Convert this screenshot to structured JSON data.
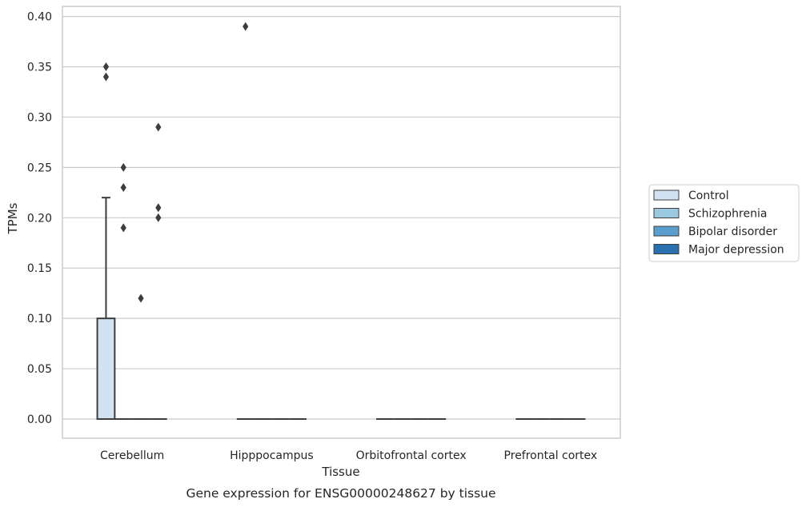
{
  "chart_data": {
    "type": "box",
    "title": "Gene expression for ENSG00000248627 by tissue",
    "xlabel": "Tissue",
    "ylabel": "TPMs",
    "ylim": [
      -0.019,
      0.41
    ],
    "yticks": [
      0.0,
      0.05,
      0.1,
      0.15,
      0.2,
      0.25,
      0.3,
      0.35,
      0.4
    ],
    "ytick_labels": [
      "0.00",
      "0.05",
      "0.10",
      "0.15",
      "0.20",
      "0.25",
      "0.30",
      "0.35",
      "0.40"
    ],
    "grid": "horizontal",
    "legend_position": "right-center",
    "categories": [
      "Cerebellum",
      "Hipppocampus",
      "Orbitofrontal cortex",
      "Prefrontal cortex"
    ],
    "series": [
      {
        "name": "Control",
        "color": "#d1e2f2",
        "boxes": [
          {
            "q1": 0.0,
            "median": 0.0,
            "q3": 0.1,
            "whisker_low": 0.0,
            "whisker_high": 0.22,
            "outliers": [
              0.35,
              0.34
            ]
          },
          {
            "q1": 0.0,
            "median": 0.0,
            "q3": 0.0,
            "whisker_low": 0.0,
            "whisker_high": 0.0,
            "outliers": [
              0.39
            ]
          },
          {
            "q1": 0.0,
            "median": 0.0,
            "q3": 0.0,
            "whisker_low": 0.0,
            "whisker_high": 0.0,
            "outliers": []
          },
          {
            "q1": 0.0,
            "median": 0.0,
            "q3": 0.0,
            "whisker_low": 0.0,
            "whisker_high": 0.0,
            "outliers": []
          }
        ]
      },
      {
        "name": "Schizophrenia",
        "color": "#9ac8e0",
        "boxes": [
          {
            "q1": 0.0,
            "median": 0.0,
            "q3": 0.0,
            "whisker_low": 0.0,
            "whisker_high": 0.0,
            "outliers": [
              0.25,
              0.23,
              0.19
            ]
          },
          {
            "q1": 0.0,
            "median": 0.0,
            "q3": 0.0,
            "whisker_low": 0.0,
            "whisker_high": 0.0,
            "outliers": []
          },
          {
            "q1": 0.0,
            "median": 0.0,
            "q3": 0.0,
            "whisker_low": 0.0,
            "whisker_high": 0.0,
            "outliers": []
          },
          {
            "q1": 0.0,
            "median": 0.0,
            "q3": 0.0,
            "whisker_low": 0.0,
            "whisker_high": 0.0,
            "outliers": []
          }
        ]
      },
      {
        "name": "Bipolar disorder",
        "color": "#5a9ecd",
        "boxes": [
          {
            "q1": 0.0,
            "median": 0.0,
            "q3": 0.0,
            "whisker_low": 0.0,
            "whisker_high": 0.0,
            "outliers": [
              0.12
            ]
          },
          {
            "q1": 0.0,
            "median": 0.0,
            "q3": 0.0,
            "whisker_low": 0.0,
            "whisker_high": 0.0,
            "outliers": []
          },
          {
            "q1": 0.0,
            "median": 0.0,
            "q3": 0.0,
            "whisker_low": 0.0,
            "whisker_high": 0.0,
            "outliers": []
          },
          {
            "q1": 0.0,
            "median": 0.0,
            "q3": 0.0,
            "whisker_low": 0.0,
            "whisker_high": 0.0,
            "outliers": []
          }
        ]
      },
      {
        "name": "Major depression",
        "color": "#2a6fb0",
        "boxes": [
          {
            "q1": 0.0,
            "median": 0.0,
            "q3": 0.0,
            "whisker_low": 0.0,
            "whisker_high": 0.0,
            "outliers": [
              0.29,
              0.21,
              0.2
            ]
          },
          {
            "q1": 0.0,
            "median": 0.0,
            "q3": 0.0,
            "whisker_low": 0.0,
            "whisker_high": 0.0,
            "outliers": []
          },
          {
            "q1": 0.0,
            "median": 0.0,
            "q3": 0.0,
            "whisker_low": 0.0,
            "whisker_high": 0.0,
            "outliers": []
          },
          {
            "q1": 0.0,
            "median": 0.0,
            "q3": 0.0,
            "whisker_low": 0.0,
            "whisker_high": 0.0,
            "outliers": []
          }
        ]
      }
    ]
  }
}
